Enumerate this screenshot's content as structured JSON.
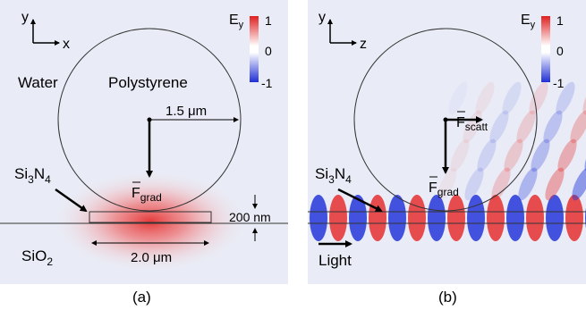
{
  "colors": {
    "background_field": "#e9ecf6",
    "positive_field": "#e53030",
    "negative_field": "#2436d9",
    "outline": "#333333"
  },
  "panel_a": {
    "axis_vertical": "y",
    "axis_horizontal": "x",
    "colorbar_title": "E",
    "colorbar_title_sub": "y",
    "colorbar_max": "1",
    "colorbar_mid": "0",
    "colorbar_min": "-1",
    "label_water": "Water",
    "label_particle": "Polystyrene",
    "radius_label": "1.5 μm",
    "force_main": "F",
    "force_sub": "grad",
    "waveguide_main": "Si",
    "waveguide_sub1": "3",
    "waveguide_mid": "N",
    "waveguide_sub2": "4",
    "height_label": "200 nm",
    "substrate_main": "SiO",
    "substrate_sub": "2",
    "width_label": "2.0 μm",
    "caption": "(a)"
  },
  "panel_b": {
    "axis_vertical": "y",
    "axis_horizontal": "z",
    "colorbar_title": "E",
    "colorbar_title_sub": "y",
    "colorbar_max": "1",
    "colorbar_mid": "0",
    "colorbar_min": "-1",
    "force_scatt_main": "F",
    "force_scatt_sub": "scatt",
    "force_grad_main": "F",
    "force_grad_sub": "grad",
    "waveguide_main": "Si",
    "waveguide_sub1": "3",
    "waveguide_mid": "N",
    "waveguide_sub2": "4",
    "light_label": "Light",
    "caption": "(b)"
  }
}
